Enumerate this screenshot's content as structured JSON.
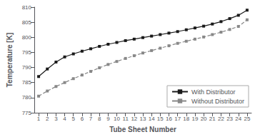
{
  "chart_data": {
    "type": "line",
    "x": [
      1,
      2,
      3,
      4,
      5,
      6,
      7,
      8,
      9,
      10,
      11,
      12,
      13,
      14,
      15,
      16,
      17,
      18,
      19,
      20,
      21,
      22,
      23,
      24,
      25
    ],
    "series": [
      {
        "name": "With Distributor",
        "color": "#1a1a1a",
        "marker": "square",
        "line_style": "solid",
        "values": [
          787.0,
          789.5,
          791.8,
          793.5,
          794.5,
          795.4,
          796.2,
          797.0,
          797.7,
          798.3,
          798.9,
          799.4,
          799.9,
          800.4,
          800.9,
          801.4,
          801.9,
          802.5,
          803.1,
          803.7,
          804.4,
          805.2,
          806.2,
          807.3,
          809.0
        ]
      },
      {
        "name": "Without Distributor",
        "color": "#888888",
        "marker": "square",
        "line_style": "dashed",
        "values": [
          780.5,
          782.2,
          783.7,
          785.0,
          786.3,
          787.5,
          788.7,
          789.9,
          791.0,
          792.0,
          793.0,
          793.9,
          794.8,
          795.6,
          796.4,
          797.2,
          798.0,
          798.7,
          799.4,
          800.1,
          800.9,
          801.7,
          802.6,
          803.6,
          805.8
        ]
      }
    ],
    "xlabel": "Tube Sheet Number",
    "ylabel": "Temperature [K]",
    "xlim": [
      0.5,
      25.5
    ],
    "xticks": [
      1,
      2,
      3,
      4,
      5,
      6,
      7,
      8,
      9,
      10,
      11,
      12,
      13,
      14,
      15,
      16,
      17,
      18,
      19,
      20,
      21,
      22,
      23,
      24,
      25
    ],
    "ylim": [
      775,
      810
    ],
    "yticks": [
      775,
      780,
      785,
      790,
      795,
      800,
      805,
      810
    ],
    "grid": false,
    "legend": "lower right"
  }
}
